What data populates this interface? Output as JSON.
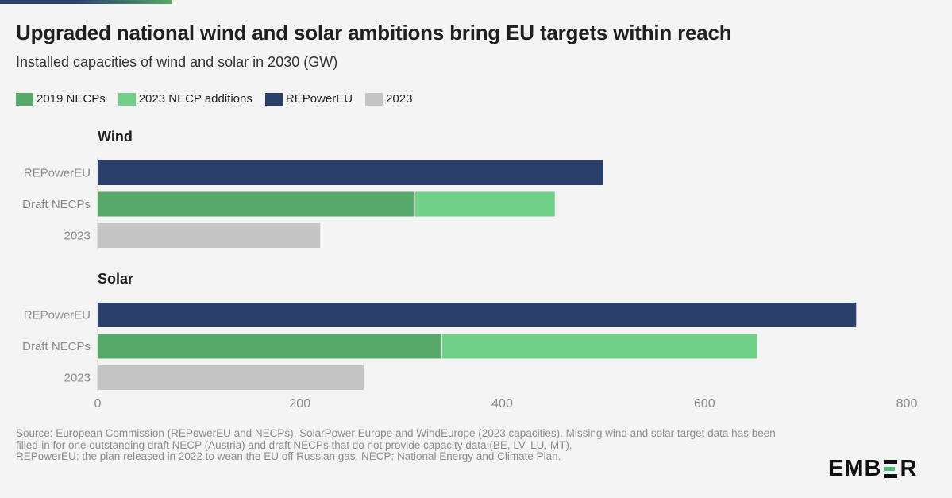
{
  "header": {
    "title": "Upgraded national wind and solar ambitions bring EU targets within reach",
    "subtitle": "Installed capacities of wind and solar in 2030 (GW)"
  },
  "legend": [
    {
      "label": "2019 NECPs",
      "color": "#58a86a"
    },
    {
      "label": "2023 NECP additions",
      "color": "#6ed187"
    },
    {
      "label": "REPowerEU",
      "color": "#2b3f6b"
    },
    {
      "label": "2023",
      "color": "#c4c4c4"
    }
  ],
  "chart_data": {
    "type": "bar",
    "orientation": "horizontal",
    "stacked": true,
    "xlim": [
      0,
      800
    ],
    "xticks": [
      0,
      200,
      400,
      600,
      800
    ],
    "xlabel": "",
    "ylabel": "",
    "categories": [
      "REPowerEU",
      "Draft NECPs",
      "2023"
    ],
    "series": [
      {
        "name": "2019 NECPs",
        "color": "#58a86a"
      },
      {
        "name": "2023 NECP additions",
        "color": "#6ed187"
      },
      {
        "name": "REPowerEU",
        "color": "#2b3f6b"
      },
      {
        "name": "2023",
        "color": "#c4c4c4"
      }
    ],
    "panels": [
      {
        "title": "Wind",
        "bars": [
          {
            "category": "REPowerEU",
            "segments": [
              {
                "series": "REPowerEU",
                "value": 500
              }
            ]
          },
          {
            "category": "Draft NECPs",
            "segments": [
              {
                "series": "2019 NECPs",
                "value": 313
              },
              {
                "series": "2023 NECP additions",
                "value": 139
              }
            ]
          },
          {
            "category": "2023",
            "segments": [
              {
                "series": "2023",
                "value": 220
              }
            ]
          }
        ]
      },
      {
        "title": "Solar",
        "bars": [
          {
            "category": "REPowerEU",
            "segments": [
              {
                "series": "REPowerEU",
                "value": 750
              }
            ]
          },
          {
            "category": "Draft NECPs",
            "segments": [
              {
                "series": "2019 NECPs",
                "value": 340
              },
              {
                "series": "2023 NECP additions",
                "value": 312
              }
            ]
          },
          {
            "category": "2023",
            "segments": [
              {
                "series": "2023",
                "value": 263
              }
            ]
          }
        ]
      }
    ]
  },
  "footer": {
    "source": "Source: European Commission (REPowerEU and NECPs), SolarPower Europe and WindEurope (2023 capacities). Missing wind and solar target data has been filled-in for one outstanding draft NECP (Austria) and draft NECPs that do not provide capacity data (BE, LV, LU, MT).",
    "note": "REPowerEU: the plan released in 2022 to wean the EU off Russian gas. NECP: National Energy and Climate Plan."
  },
  "logo": {
    "text_left": "EMB",
    "text_right": "R"
  }
}
